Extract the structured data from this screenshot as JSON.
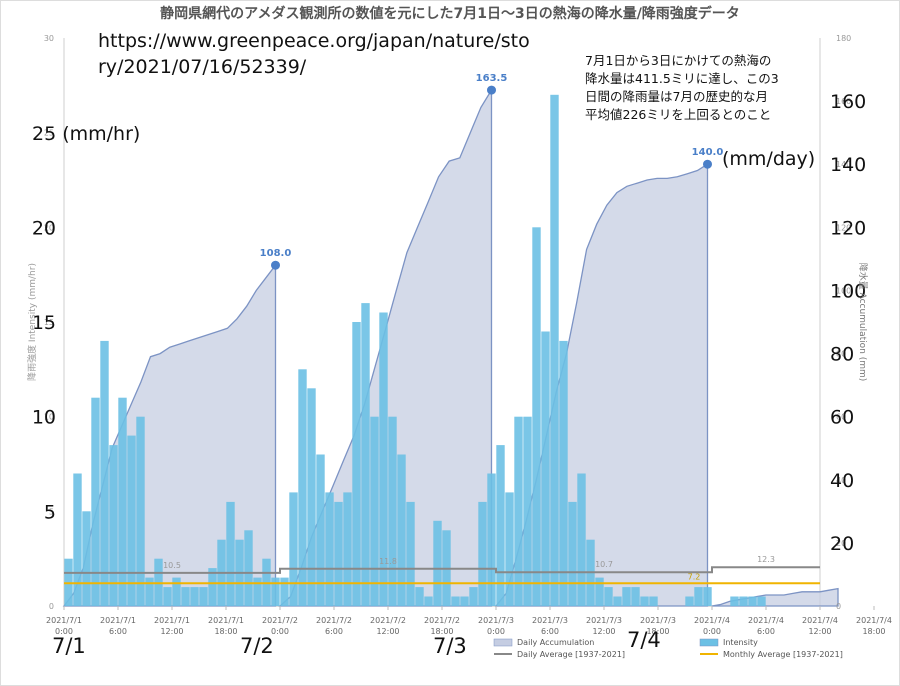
{
  "chart_data": {
    "type": "bar",
    "title": "静岡県網代のアメダス観測所の数値を元にした7月1日〜3日の熱海の降水量/降雨強度データ",
    "ylabel": "降雨強度 Intensity (mm/hr)",
    "y2label": "降水量 Accumulation (mm)",
    "ylim": [
      0,
      30
    ],
    "y2lim": [
      0,
      180
    ],
    "yticks_small": [
      "0",
      "5",
      "10",
      "15",
      "20",
      "25",
      "30"
    ],
    "y2ticks_small": [
      "0",
      "20",
      "40",
      "60",
      "80",
      "100",
      "120",
      "140",
      "160",
      "180"
    ],
    "yticks_big": [
      "5",
      "10",
      "15",
      "20"
    ],
    "y2ticks_big": [
      "20",
      "40",
      "60",
      "80",
      "100",
      "120",
      "140",
      "160"
    ],
    "xticks": [
      [
        "2021/7/1",
        "0:00"
      ],
      [
        "2021/7/1",
        "6:00"
      ],
      [
        "2021/7/1",
        "12:00"
      ],
      [
        "2021/7/1",
        "18:00"
      ],
      [
        "2021/7/2",
        "0:00"
      ],
      [
        "2021/7/2",
        "6:00"
      ],
      [
        "2021/7/2",
        "12:00"
      ],
      [
        "2021/7/2",
        "18:00"
      ],
      [
        "2021/7/3",
        "0:00"
      ],
      [
        "2021/7/3",
        "6:00"
      ],
      [
        "2021/7/3",
        "12:00"
      ],
      [
        "2021/7/3",
        "18:00"
      ],
      [
        "2021/7/4",
        "0:00"
      ],
      [
        "2021/7/4",
        "6:00"
      ],
      [
        "2021/7/4",
        "12:00"
      ],
      [
        "2021/7/4",
        "18:00"
      ]
    ],
    "series": [
      {
        "name": "Intensity",
        "color": "#6cc0e4",
        "values": [
          2.5,
          7,
          5,
          11,
          14,
          8.5,
          11,
          9,
          10,
          1.5,
          2.5,
          1,
          1.5,
          1,
          1,
          1,
          2,
          3.5,
          5.5,
          3.5,
          4,
          1.5,
          2.5,
          1.5,
          1.5,
          6,
          12.5,
          11.5,
          8,
          6,
          5.5,
          6,
          15,
          16,
          10,
          15.5,
          10,
          8,
          5.5,
          1,
          0.5,
          4.5,
          4,
          0.5,
          0.5,
          1,
          5.5,
          7,
          8.5,
          6,
          10,
          10,
          20,
          14.5,
          27,
          14,
          5.5,
          7,
          3.5,
          1.5,
          1,
          0.5,
          1,
          1,
          0.5,
          0.5,
          0,
          0,
          0,
          0.5,
          1,
          1,
          0,
          0,
          0.5,
          0.5,
          0.5,
          0.5,
          0,
          0,
          0,
          0,
          0,
          0
        ]
      },
      {
        "name": "Daily Accumulation",
        "color": "#b7c3dd",
        "values": [
          0,
          4,
          12,
          26,
          38,
          50,
          57,
          64,
          71,
          79,
          80,
          82,
          83,
          84,
          85,
          86,
          87,
          88,
          91,
          95,
          100,
          104,
          108,
          0,
          3,
          12,
          22,
          30,
          38,
          46,
          54,
          64,
          76,
          88,
          100,
          112,
          120,
          128,
          136,
          141,
          142,
          150,
          158,
          163.5,
          0,
          4,
          15,
          27,
          40,
          54,
          68,
          80,
          96,
          113,
          121,
          127,
          131,
          133,
          134,
          135,
          135.5,
          135.5,
          136,
          137,
          138,
          140,
          0,
          0.5,
          1.5,
          2,
          2.5,
          3,
          3.5,
          3.5,
          3.5,
          4,
          4.5,
          4.5,
          4.5,
          5,
          5.5
        ]
      },
      {
        "name": "Daily Average [1937-2021]",
        "color": "#888888",
        "values": [
          10.5,
          11.8,
          10.7,
          12.3
        ]
      },
      {
        "name": "Monthly Average [1937-2021]",
        "color": "#f0b400",
        "values": [
          7.2,
          7.2,
          7.2,
          7.2
        ]
      }
    ],
    "peak_labels": [
      "108.0",
      "163.5",
      "140.0"
    ],
    "avg_labels": [
      "10.5",
      "11.8",
      "10.7",
      "12.3",
      "7.2"
    ],
    "legend": [
      "Daily Accumulation",
      "Intensity",
      "Daily Average [1937-2021]",
      "Monthly Average [1937-2021]"
    ],
    "legend_position": "bottom-right",
    "grid": false
  },
  "overlay": {
    "url_line1": "https://www.greenpeace.org/japan/nature/sto",
    "url_line2": "ry/2021/07/16/52339/",
    "note_lines": [
      "7月1日から3日にかけての熱海の",
      "降水量は411.5ミリに達し、この3",
      "日間の降雨量は7月の歴史的な月",
      "平均値226ミリを上回るとのこと"
    ],
    "left_unit": "25 (mm/hr)",
    "right_unit": "(mm/day)",
    "dates": [
      "7/1",
      "7/2",
      "7/3",
      "7/4"
    ]
  }
}
